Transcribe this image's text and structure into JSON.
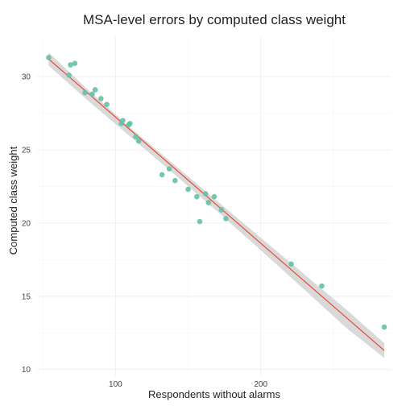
{
  "chart_data": {
    "type": "scatter",
    "title": "MSA-level errors by computed class weight",
    "xlabel": "Respondents without alarms",
    "ylabel": "Computed class weight",
    "xlim": [
      46,
      290
    ],
    "ylim": [
      9.6,
      32.7
    ],
    "x_ticks": [
      100,
      200
    ],
    "x_minor_ticks": [
      50,
      150,
      250
    ],
    "y_ticks": [
      10,
      15,
      20,
      25,
      30
    ],
    "y_minor_ticks": [
      12.5,
      17.5,
      22.5,
      27.5
    ],
    "grid": true,
    "point_color": "#66c2a5",
    "fit_line_color": "#e8412b",
    "confidence_band_color": "#cccccc",
    "points": [
      {
        "x": 54,
        "y": 31.3
      },
      {
        "x": 68,
        "y": 30.1
      },
      {
        "x": 69,
        "y": 30.8
      },
      {
        "x": 72,
        "y": 30.9
      },
      {
        "x": 79,
        "y": 28.9
      },
      {
        "x": 84,
        "y": 28.8
      },
      {
        "x": 86,
        "y": 29.1
      },
      {
        "x": 90,
        "y": 28.5
      },
      {
        "x": 94,
        "y": 28.1
      },
      {
        "x": 104,
        "y": 26.8
      },
      {
        "x": 105,
        "y": 27.0
      },
      {
        "x": 109,
        "y": 26.7
      },
      {
        "x": 110,
        "y": 26.8
      },
      {
        "x": 114,
        "y": 25.9
      },
      {
        "x": 116,
        "y": 25.6
      },
      {
        "x": 132,
        "y": 23.3
      },
      {
        "x": 137,
        "y": 23.7
      },
      {
        "x": 141,
        "y": 22.9
      },
      {
        "x": 150,
        "y": 22.3
      },
      {
        "x": 156,
        "y": 21.8
      },
      {
        "x": 158,
        "y": 20.1
      },
      {
        "x": 162,
        "y": 22.0
      },
      {
        "x": 164,
        "y": 21.4
      },
      {
        "x": 168,
        "y": 21.8
      },
      {
        "x": 173,
        "y": 20.9
      },
      {
        "x": 176,
        "y": 20.3
      },
      {
        "x": 221,
        "y": 17.2
      },
      {
        "x": 242,
        "y": 15.7
      },
      {
        "x": 285,
        "y": 12.9
      }
    ],
    "fit_line": {
      "x": [
        54,
        285
      ],
      "y": [
        31.2,
        11.3
      ]
    },
    "confidence_band": {
      "x": [
        54,
        80,
        110,
        140,
        170,
        200,
        230,
        260,
        285
      ],
      "upper": [
        31.65,
        29.2,
        26.53,
        24.02,
        21.5,
        19.0,
        16.5,
        14.0,
        11.8
      ],
      "lower": [
        30.75,
        28.45,
        25.92,
        23.38,
        20.8,
        18.15,
        15.45,
        12.75,
        10.8
      ]
    }
  }
}
